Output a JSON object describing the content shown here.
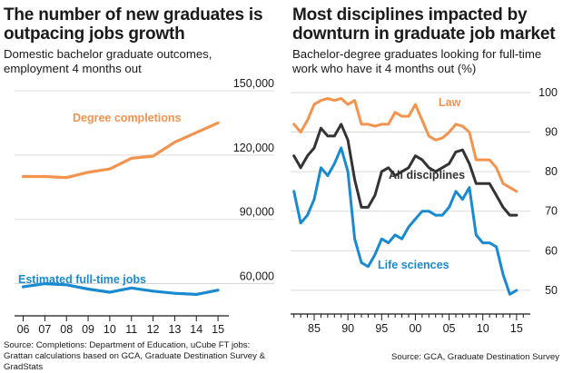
{
  "colors": {
    "orange": "#f3934e",
    "blue": "#1a8ad0",
    "dark": "#333333",
    "grid": "#d0d0d0",
    "axis": "#1a1a1a"
  },
  "left": {
    "title": "The number of new graduates is outpacing jobs growth",
    "subtitle": "Domestic bachelor graduate outcomes, employment 4 months out",
    "source": "Source: Completions: Department of Education, uCube FT jobs: Grattan calculations based on GCA, Graduate Destination Survey & GradStats"
  },
  "right": {
    "title": "Most disciplines impacted by downturn in graduate job market",
    "subtitle": "Bachelor-degree graduates looking for full-time work who have it 4 months out (%)",
    "source": "Source: GCA, Graduate Destination Survey"
  },
  "chart_data": [
    {
      "type": "line",
      "x": [
        2006,
        2007,
        2008,
        2009,
        2010,
        2011,
        2012,
        2013,
        2014,
        2015
      ],
      "xticks": [
        "06",
        "07",
        "08",
        "09",
        "10",
        "11",
        "12",
        "13",
        "14",
        "15"
      ],
      "yticks": [
        "60,000",
        "90,000",
        "120,000",
        "150,000"
      ],
      "ytick_values": [
        60000,
        90000,
        120000,
        150000
      ],
      "ylim": [
        45000,
        150000
      ],
      "xlim": [
        2005.6,
        2015.5
      ],
      "series": [
        {
          "name": "Degree completions",
          "color": "#f3934e",
          "values": [
            110000,
            110000,
            109500,
            112000,
            113500,
            118500,
            119500,
            126000,
            130500,
            135000
          ]
        },
        {
          "name": "Estimated full-time jobs",
          "color": "#1a8ad0",
          "values": [
            58500,
            60000,
            59500,
            57500,
            56000,
            58000,
            56500,
            55500,
            55000,
            57000
          ]
        }
      ],
      "grid": true
    },
    {
      "type": "line",
      "x": [
        1982,
        1983,
        1984,
        1985,
        1986,
        1987,
        1988,
        1989,
        1990,
        1991,
        1992,
        1993,
        1994,
        1995,
        1996,
        1997,
        1998,
        1999,
        2000,
        2001,
        2002,
        2003,
        2004,
        2005,
        2006,
        2007,
        2008,
        2009,
        2010,
        2011,
        2012,
        2013,
        2014,
        2015
      ],
      "xticks": [
        "85",
        "90",
        "95",
        "00",
        "05",
        "10",
        "15"
      ],
      "xtick_values": [
        1985,
        1990,
        1995,
        2000,
        2005,
        2010,
        2015
      ],
      "yticks": [
        "50",
        "60",
        "70",
        "80",
        "90",
        "100"
      ],
      "ytick_values": [
        50,
        60,
        70,
        80,
        90,
        100
      ],
      "ylim": [
        44,
        100
      ],
      "xlim": [
        1981.5,
        2016.5
      ],
      "series": [
        {
          "name": "Law",
          "color": "#f3934e",
          "values": [
            92,
            90,
            93,
            97,
            98,
            98.5,
            98,
            98.5,
            97,
            98,
            92,
            92,
            91.5,
            92,
            92,
            95,
            94,
            94,
            97,
            93,
            89,
            88,
            88.5,
            90,
            92,
            91.5,
            90,
            83,
            83,
            83,
            81,
            77,
            76,
            75
          ]
        },
        {
          "name": "All disciplines",
          "color": "#333333",
          "values": [
            84,
            81,
            84,
            86,
            91,
            89,
            89,
            92,
            88,
            78,
            71,
            71,
            74,
            80,
            81,
            79,
            80,
            81,
            84,
            83,
            81,
            80,
            81,
            82,
            85,
            85.5,
            82,
            77,
            77,
            77,
            74,
            71,
            69,
            69
          ]
        },
        {
          "name": "Life sciences",
          "color": "#1a8ad0",
          "values": [
            75,
            67,
            69,
            73,
            81,
            79,
            82,
            86,
            80,
            63,
            57,
            56,
            59,
            63,
            62,
            64,
            63,
            66,
            68,
            70,
            70,
            69,
            69,
            71,
            75,
            73,
            76,
            64,
            62,
            62,
            61,
            54,
            49,
            50
          ]
        }
      ],
      "grid": true
    }
  ]
}
